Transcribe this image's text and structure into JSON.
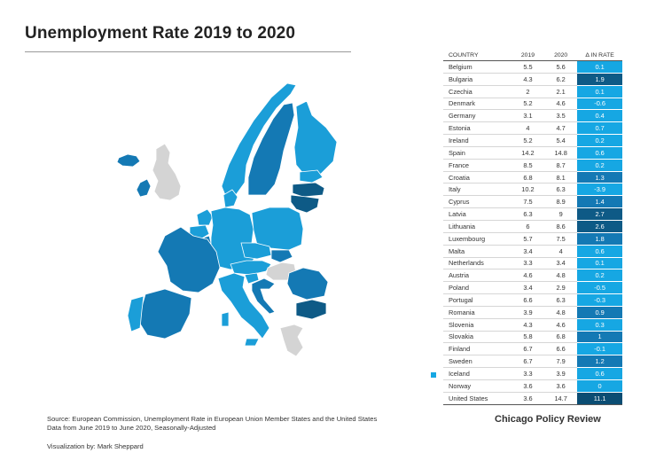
{
  "title": "Unemployment Rate 2019 to 2020",
  "colors": {
    "high_increase": "#0e5a86",
    "medium_increase": "#1479b4",
    "low_increase": "#1b9ed8",
    "change_small": "#16a7e3",
    "no_data": "#d4d4d4",
    "us_marker": "#16a7e3"
  },
  "table": {
    "headers": [
      "COUNTRY",
      "2019",
      "2020",
      "Δ IN RATE"
    ],
    "rows": [
      {
        "country": "Belgium",
        "y2019": "5.5",
        "y2020": "5.6",
        "delta": "0.1",
        "shade": "light"
      },
      {
        "country": "Bulgaria",
        "y2019": "4.3",
        "y2020": "6.2",
        "delta": "1.9",
        "shade": "dark"
      },
      {
        "country": "Czechia",
        "y2019": "2",
        "y2020": "2.1",
        "delta": "0.1",
        "shade": "light"
      },
      {
        "country": "Denmark",
        "y2019": "5.2",
        "y2020": "4.6",
        "delta": "-0.6",
        "shade": "light"
      },
      {
        "country": "Germany",
        "y2019": "3.1",
        "y2020": "3.5",
        "delta": "0.4",
        "shade": "light"
      },
      {
        "country": "Estonia",
        "y2019": "4",
        "y2020": "4.7",
        "delta": "0.7",
        "shade": "light"
      },
      {
        "country": "Ireland",
        "y2019": "5.2",
        "y2020": "5.4",
        "delta": "0.2",
        "shade": "light"
      },
      {
        "country": "Spain",
        "y2019": "14.2",
        "y2020": "14.8",
        "delta": "0.6",
        "shade": "light"
      },
      {
        "country": "France",
        "y2019": "8.5",
        "y2020": "8.7",
        "delta": "0.2",
        "shade": "light"
      },
      {
        "country": "Croatia",
        "y2019": "6.8",
        "y2020": "8.1",
        "delta": "1.3",
        "shade": "mid"
      },
      {
        "country": "Italy",
        "y2019": "10.2",
        "y2020": "6.3",
        "delta": "-3.9",
        "shade": "light"
      },
      {
        "country": "Cyprus",
        "y2019": "7.5",
        "y2020": "8.9",
        "delta": "1.4",
        "shade": "mid"
      },
      {
        "country": "Latvia",
        "y2019": "6.3",
        "y2020": "9",
        "delta": "2.7",
        "shade": "dark"
      },
      {
        "country": "Lithuania",
        "y2019": "6",
        "y2020": "8.6",
        "delta": "2.6",
        "shade": "dark"
      },
      {
        "country": "Luxembourg",
        "y2019": "5.7",
        "y2020": "7.5",
        "delta": "1.8",
        "shade": "mid"
      },
      {
        "country": "Malta",
        "y2019": "3.4",
        "y2020": "4",
        "delta": "0.6",
        "shade": "light"
      },
      {
        "country": "Netherlands",
        "y2019": "3.3",
        "y2020": "3.4",
        "delta": "0.1",
        "shade": "light"
      },
      {
        "country": "Austria",
        "y2019": "4.6",
        "y2020": "4.8",
        "delta": "0.2",
        "shade": "light"
      },
      {
        "country": "Poland",
        "y2019": "3.4",
        "y2020": "2.9",
        "delta": "-0.5",
        "shade": "light"
      },
      {
        "country": "Portugal",
        "y2019": "6.6",
        "y2020": "6.3",
        "delta": "-0.3",
        "shade": "light"
      },
      {
        "country": "Romania",
        "y2019": "3.9",
        "y2020": "4.8",
        "delta": "0.9",
        "shade": "mid"
      },
      {
        "country": "Slovenia",
        "y2019": "4.3",
        "y2020": "4.6",
        "delta": "0.3",
        "shade": "light"
      },
      {
        "country": "Slovakia",
        "y2019": "5.8",
        "y2020": "6.8",
        "delta": "1",
        "shade": "mid"
      },
      {
        "country": "Finland",
        "y2019": "6.7",
        "y2020": "6.6",
        "delta": "-0.1",
        "shade": "light"
      },
      {
        "country": "Sweden",
        "y2019": "6.7",
        "y2020": "7.9",
        "delta": "1.2",
        "shade": "mid"
      },
      {
        "country": "Iceland",
        "y2019": "3.3",
        "y2020": "3.9",
        "delta": "0.6",
        "shade": "light"
      },
      {
        "country": "Norway",
        "y2019": "3.6",
        "y2020": "3.6",
        "delta": "0",
        "shade": "light"
      }
    ],
    "us_row": {
      "country": "United States",
      "y2019": "3.6",
      "y2020": "14.7",
      "delta": "11.1",
      "shade": "darkest"
    }
  },
  "footer": {
    "source_line1": "Source: European Commission, Unemployment Rate in European Union Member States and the United States",
    "source_line2": "Data from June 2019 to June 2020, Seasonally-Adjusted",
    "credit": "Visualization by: Mark Sheppard",
    "brand": "Chicago Policy Review"
  }
}
